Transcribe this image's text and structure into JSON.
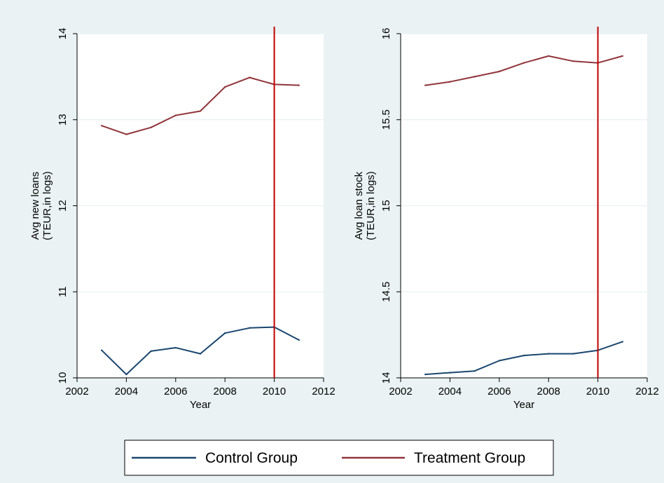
{
  "chart_data": [
    {
      "type": "line",
      "xlabel": "Year",
      "ylabel_lines": [
        "Avg new loans",
        "(TEUR,in logs)"
      ],
      "x": [
        2003,
        2004,
        2005,
        2006,
        2007,
        2008,
        2009,
        2010,
        2011
      ],
      "xlim": [
        2002,
        2012
      ],
      "xticks": [
        2002,
        2004,
        2006,
        2008,
        2010,
        2012
      ],
      "ylim": [
        10,
        14
      ],
      "yticks": [
        10,
        11,
        12,
        13,
        14
      ],
      "grid": true,
      "vline": 2010,
      "series": [
        {
          "name": "Control Group",
          "color": "#1a476f",
          "values": [
            10.32,
            10.04,
            10.31,
            10.35,
            10.28,
            10.52,
            10.58,
            10.59,
            10.44
          ]
        },
        {
          "name": "Treatment Group",
          "color": "#90353b",
          "values": [
            12.93,
            12.83,
            12.91,
            13.05,
            13.1,
            13.38,
            13.49,
            13.41,
            13.4
          ]
        }
      ]
    },
    {
      "type": "line",
      "xlabel": "Year",
      "ylabel_lines": [
        "Avg loan stock",
        "(TEUR,in logs)"
      ],
      "x": [
        2003,
        2004,
        2005,
        2006,
        2007,
        2008,
        2009,
        2010,
        2011
      ],
      "xlim": [
        2002,
        2012
      ],
      "xticks": [
        2002,
        2004,
        2006,
        2008,
        2010,
        2012
      ],
      "ylim": [
        14,
        16
      ],
      "yticks": [
        14,
        14.5,
        15,
        15.5,
        16
      ],
      "grid": true,
      "vline": 2010,
      "series": [
        {
          "name": "Control Group",
          "color": "#1a476f",
          "values": [
            14.02,
            14.03,
            14.04,
            14.1,
            14.13,
            14.14,
            14.14,
            14.16,
            14.21
          ]
        },
        {
          "name": "Treatment Group",
          "color": "#90353b",
          "values": [
            15.7,
            15.72,
            15.75,
            15.78,
            15.83,
            15.87,
            15.84,
            15.83,
            15.87
          ]
        }
      ]
    }
  ],
  "legend": {
    "items": [
      {
        "label": "Control Group",
        "color": "#1a476f"
      },
      {
        "label": "Treatment Group",
        "color": "#90353b"
      }
    ]
  },
  "colors": {
    "background": "#eaf2f3",
    "plot_region": "#ffffff",
    "grid": "#eaf2f3",
    "vline": "#c00000"
  }
}
